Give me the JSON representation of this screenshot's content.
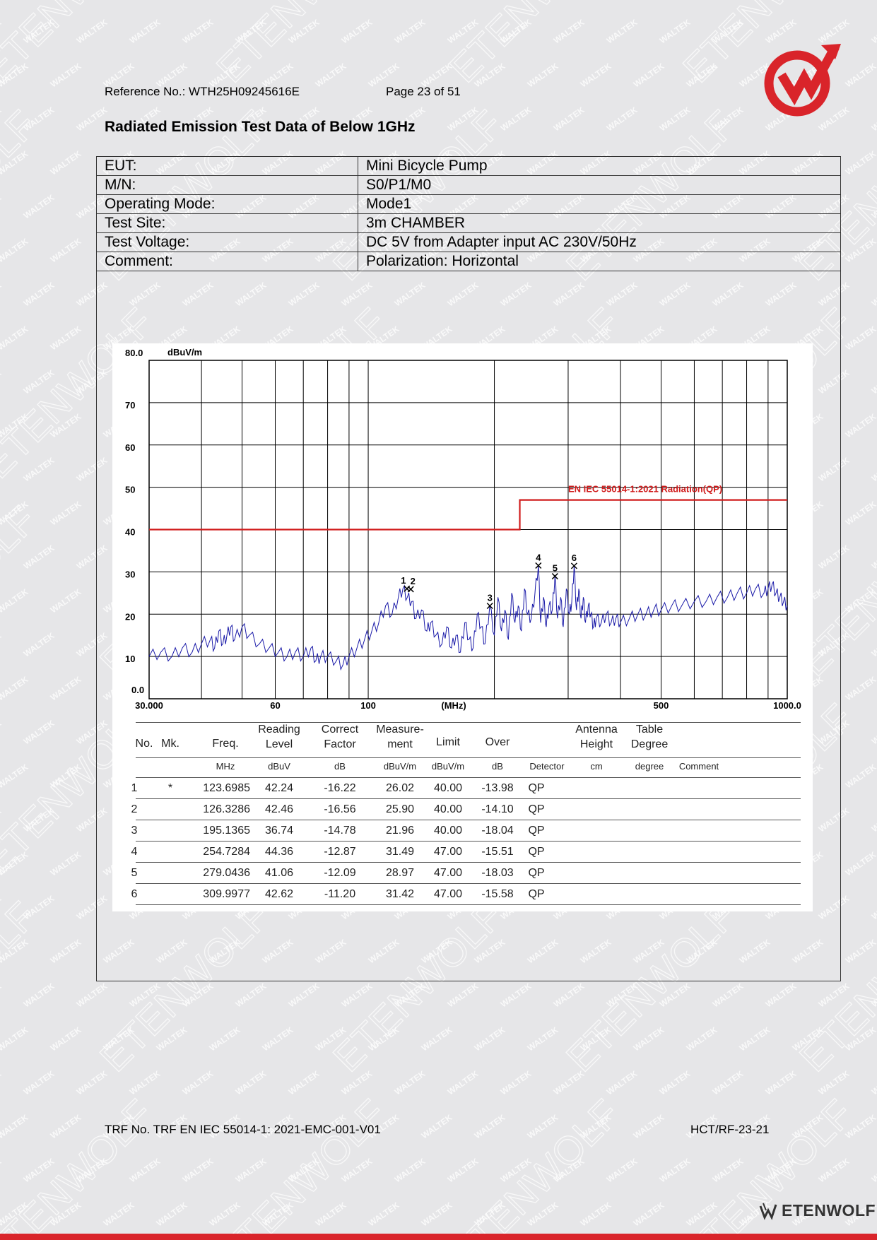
{
  "header": {
    "reference": "Reference No.: WTH25H09245616E",
    "page": "Page 23 of 51"
  },
  "title": "Radiated Emission Test Data of Below 1GHz",
  "info_rows": [
    {
      "label": "EUT:",
      "value": "Mini Bicycle Pump"
    },
    {
      "label": "M/N:",
      "value": "S0/P1/M0"
    },
    {
      "label": "Operating Mode:",
      "value": "Mode1"
    },
    {
      "label": "Test Site:",
      "value": "3m CHAMBER"
    },
    {
      "label": "Test Voltage:",
      "value": "DC 5V from Adapter input AC 230V/50Hz"
    },
    {
      "label": "Comment:",
      "value": "Polarization: Horizontal"
    }
  ],
  "chart_data": {
    "type": "line",
    "x_scale": "log",
    "xlim": [
      30,
      1000
    ],
    "ylim": [
      0,
      80
    ],
    "ylabel": "dBuV/m",
    "xlabel": "(MHz)",
    "y_ticks": [
      "80.0",
      "70",
      "60",
      "50",
      "40",
      "30",
      "20",
      "10",
      "0.0"
    ],
    "x_ticks": [
      "30.000",
      "60",
      "100",
      "(MHz)",
      "500",
      "1000.0"
    ],
    "grid": true,
    "limit_line": {
      "name": "EN IEC 55014-1:2021 Radiation(QP)",
      "color": "#d01c1c",
      "segments": [
        {
          "x": [
            30,
            230
          ],
          "y": 40
        },
        {
          "x": [
            230,
            1000
          ],
          "y": 47
        }
      ]
    },
    "markers": [
      {
        "label": "1",
        "x": 123.6985,
        "y": 26.02
      },
      {
        "label": "2",
        "x": 126.3286,
        "y": 25.9
      },
      {
        "label": "3",
        "x": 195.1365,
        "y": 21.96
      },
      {
        "label": "4",
        "x": 254.7284,
        "y": 31.49
      },
      {
        "label": "5",
        "x": 279.0436,
        "y": 28.97
      },
      {
        "label": "6",
        "x": 309.9977,
        "y": 31.42
      }
    ],
    "series": [
      {
        "color": "#1a1aa8",
        "x": [
          30,
          32,
          34,
          36,
          38,
          40,
          42,
          43,
          44,
          45,
          46,
          47,
          48,
          50,
          52,
          55,
          58,
          61,
          64,
          67,
          70,
          73,
          75,
          77,
          80,
          84,
          87,
          90,
          94,
          98,
          102,
          106,
          110,
          114,
          118,
          121,
          124,
          127,
          130,
          134,
          138,
          141,
          145,
          150,
          154,
          158,
          162,
          166,
          170,
          174,
          178,
          182,
          186,
          190,
          195,
          200,
          204,
          208,
          212,
          216,
          220,
          224,
          228,
          232,
          236,
          240,
          245,
          250,
          254.7,
          258,
          262,
          266,
          270,
          275,
          279,
          283,
          288,
          292,
          297,
          302,
          306,
          310,
          314,
          318,
          322,
          326,
          330,
          335,
          340,
          345,
          350,
          360,
          370,
          380,
          390,
          400,
          420,
          440,
          460,
          480,
          500,
          530,
          560,
          600,
          640,
          680,
          720,
          760,
          800,
          840,
          880,
          900,
          920,
          940,
          960,
          980,
          1000
        ],
        "y": [
          10,
          11,
          10,
          12,
          11,
          13,
          14,
          12,
          16,
          13,
          15,
          17,
          14,
          17,
          15,
          13,
          12,
          11,
          10,
          11,
          10,
          12,
          9,
          10,
          10,
          9,
          8,
          10,
          12,
          14,
          16,
          18,
          22,
          20,
          24,
          26,
          24,
          23,
          19,
          21,
          16,
          18,
          15,
          13,
          17,
          12,
          15,
          11,
          18,
          14,
          12,
          20,
          17,
          13,
          22,
          15,
          24,
          16,
          21,
          14,
          25,
          18,
          22,
          16,
          26,
          20,
          19,
          25,
          31.5,
          18,
          24,
          17,
          22,
          21,
          29,
          19,
          24,
          17,
          26,
          20,
          23,
          31.4,
          21,
          26,
          19,
          24,
          18,
          22,
          20,
          17,
          19,
          18,
          20,
          18,
          19,
          18,
          19,
          20,
          20,
          21,
          21,
          22,
          22,
          23,
          23,
          24,
          24,
          25,
          25,
          26,
          25,
          26,
          27,
          25,
          24,
          23,
          22
        ]
      }
    ]
  },
  "results": {
    "headers": {
      "no": "No.",
      "mk": "Mk.",
      "freq": "Freq.",
      "reading": [
        "Reading",
        "Level"
      ],
      "correct": [
        "Correct",
        "Factor"
      ],
      "measure": [
        "Measure-",
        "ment"
      ],
      "limit": "Limit",
      "over": "Over",
      "antenna": [
        "Antenna",
        "Height"
      ],
      "table": [
        "Table",
        "Degree"
      ]
    },
    "units": {
      "freq": "MHz",
      "reading": "dBuV",
      "correct": "dB",
      "measure": "dBuV/m",
      "limit": "dBuV/m",
      "over": "dB",
      "detector": "Detector",
      "antenna": "cm",
      "table": "degree",
      "comment": "Comment"
    },
    "rows": [
      {
        "no": "1",
        "mk": "*",
        "freq": "123.6985",
        "reading": "42.24",
        "correct": "-16.22",
        "measure": "26.02",
        "limit": "40.00",
        "over": "-13.98",
        "detector": "QP"
      },
      {
        "no": "2",
        "mk": "",
        "freq": "126.3286",
        "reading": "42.46",
        "correct": "-16.56",
        "measure": "25.90",
        "limit": "40.00",
        "over": "-14.10",
        "detector": "QP"
      },
      {
        "no": "3",
        "mk": "",
        "freq": "195.1365",
        "reading": "36.74",
        "correct": "-14.78",
        "measure": "21.96",
        "limit": "40.00",
        "over": "-18.04",
        "detector": "QP"
      },
      {
        "no": "4",
        "mk": "",
        "freq": "254.7284",
        "reading": "44.36",
        "correct": "-12.87",
        "measure": "31.49",
        "limit": "47.00",
        "over": "-15.51",
        "detector": "QP"
      },
      {
        "no": "5",
        "mk": "",
        "freq": "279.0436",
        "reading": "41.06",
        "correct": "-12.09",
        "measure": "28.97",
        "limit": "47.00",
        "over": "-18.03",
        "detector": "QP"
      },
      {
        "no": "6",
        "mk": "",
        "freq": "309.9977",
        "reading": "42.62",
        "correct": "-11.20",
        "measure": "31.42",
        "limit": "47.00",
        "over": "-15.58",
        "detector": "QP"
      }
    ]
  },
  "footer": {
    "trf": "TRF No. TRF EN IEC 55014-1: 2021-EMC-001-V01",
    "code": "HCT/RF-23-21",
    "brand": "ETENWOLF"
  },
  "watermarks": [
    "WALTEK",
    "ETENWOLF"
  ],
  "colors": {
    "brand_red": "#d9242a",
    "limit_red": "#d01c1c",
    "trace_blue": "#1a1aa8"
  }
}
